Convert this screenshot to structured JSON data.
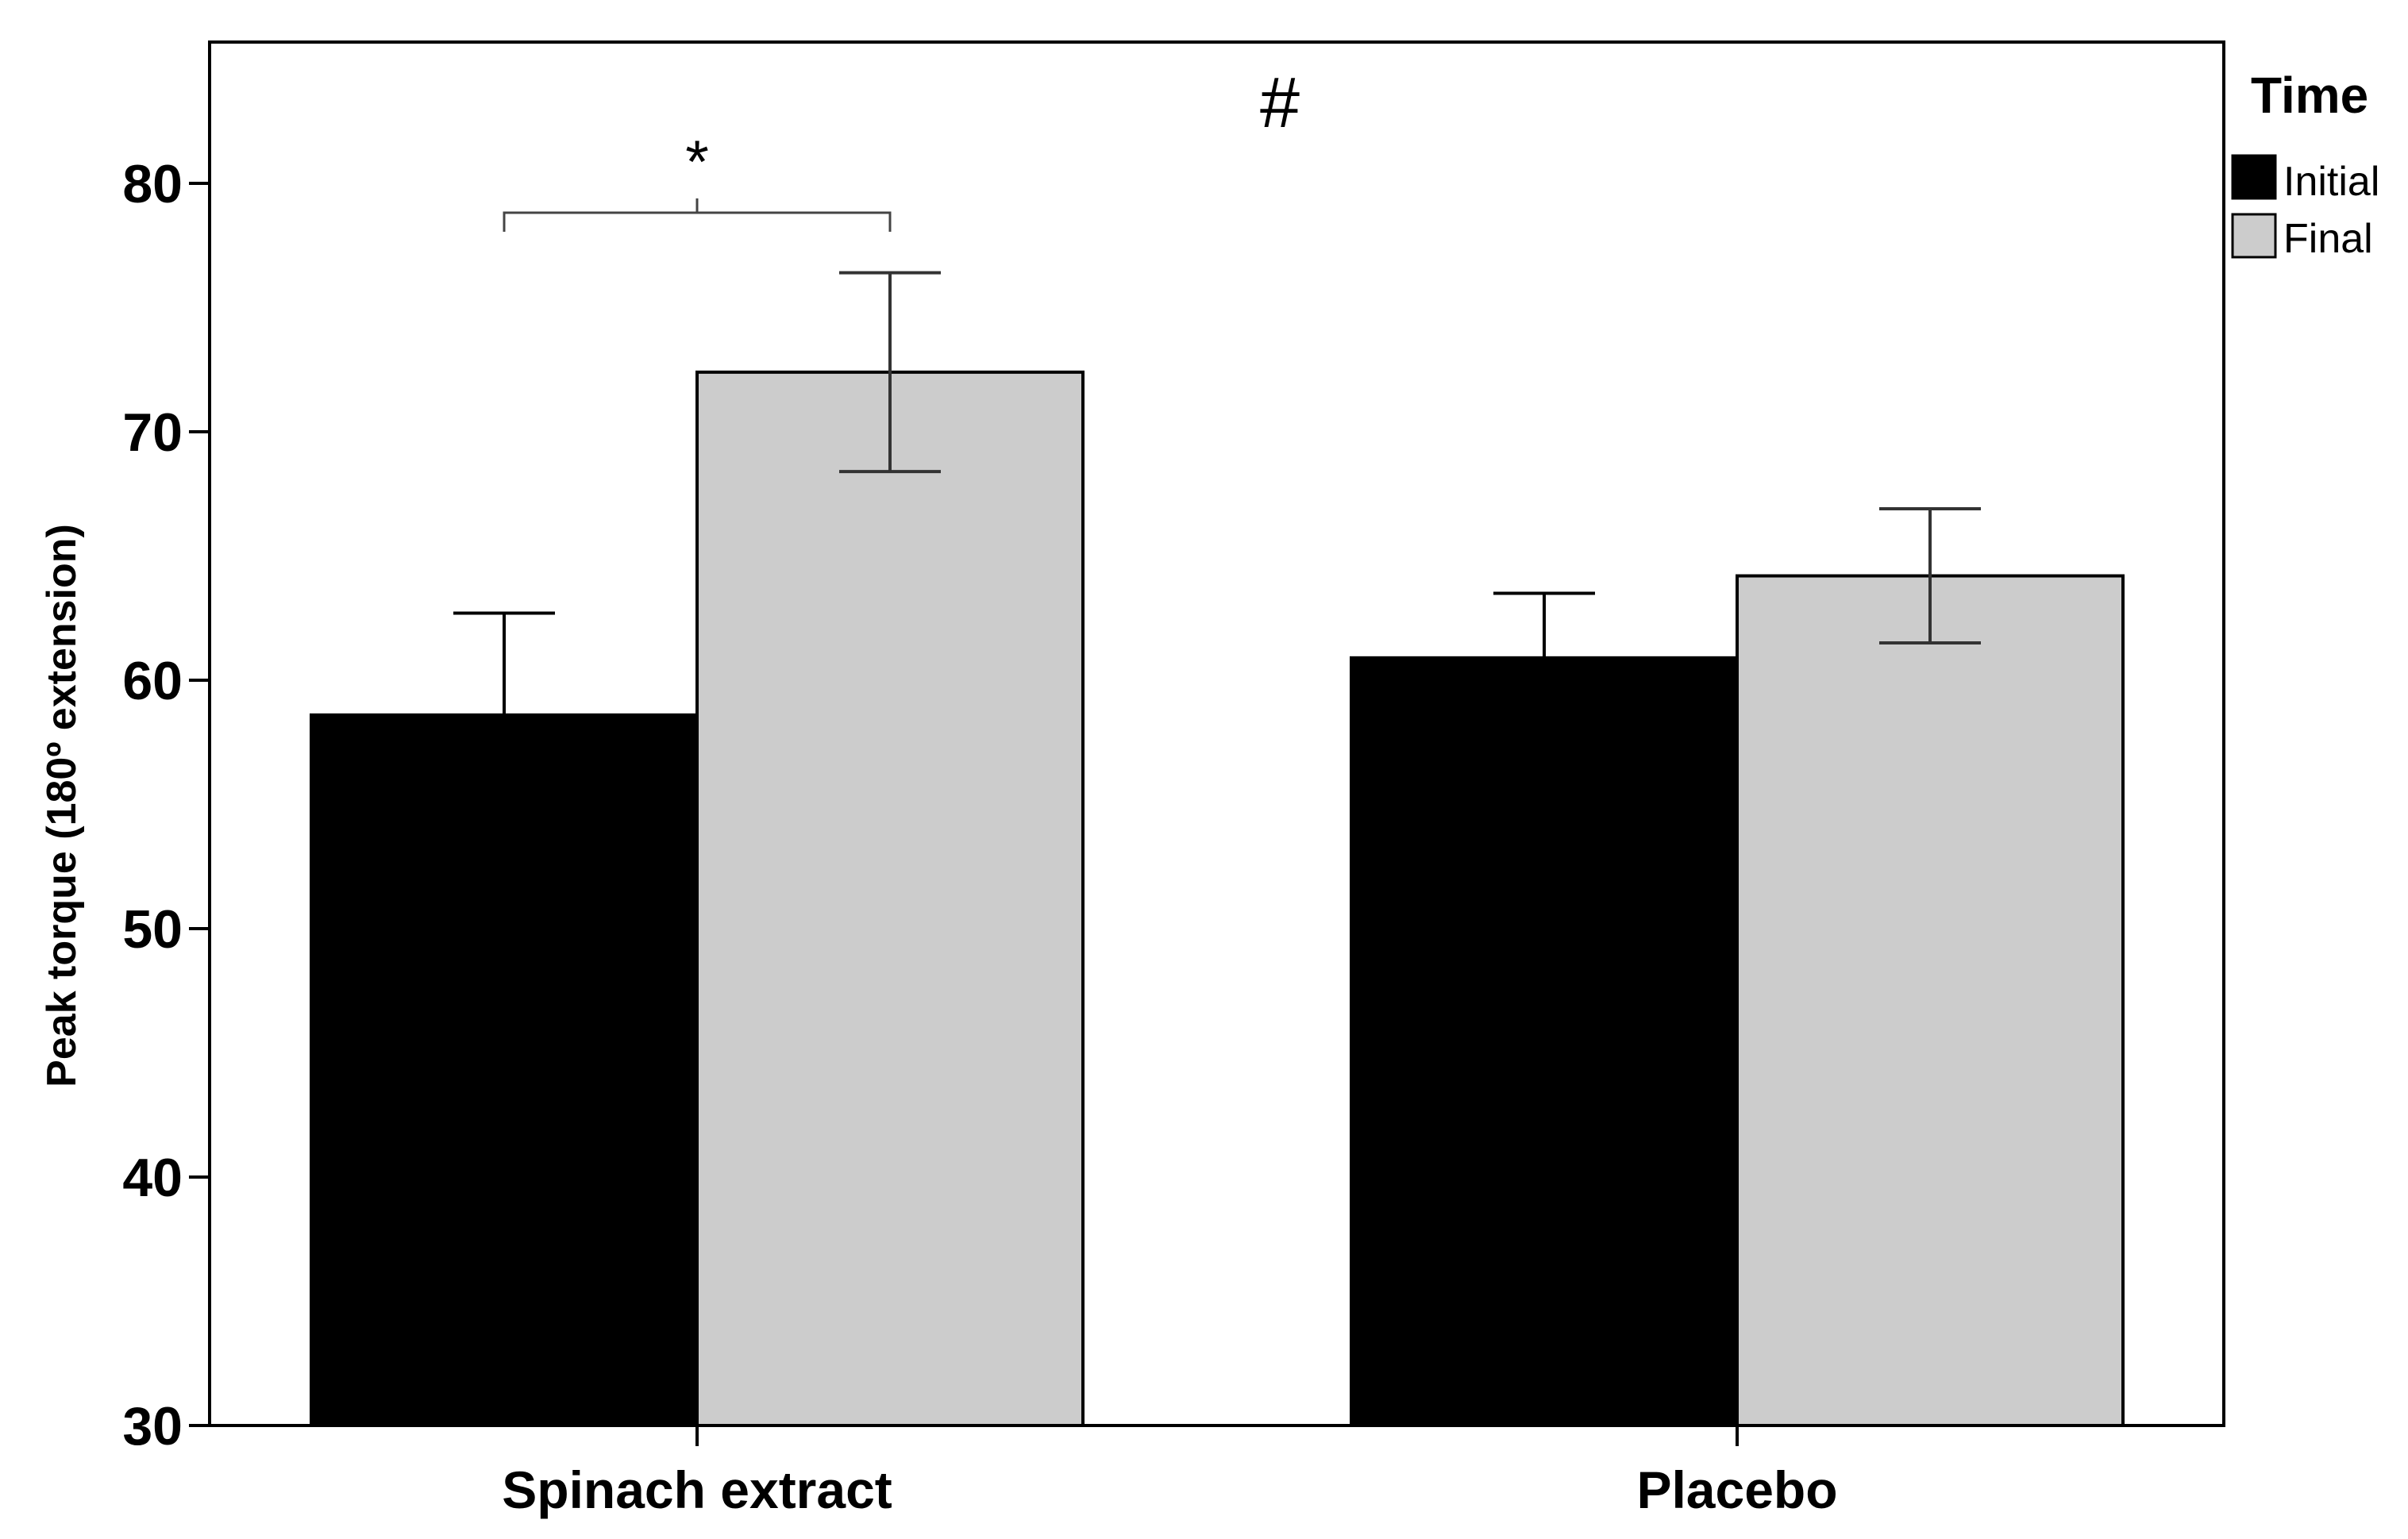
{
  "chart_data": {
    "type": "bar",
    "title": "",
    "xlabel": "",
    "ylabel": "Peak torque (180º extension)",
    "ylim": [
      30,
      85
    ],
    "yticks": [
      30,
      40,
      50,
      60,
      70,
      80
    ],
    "categories": [
      "Spinach extract",
      "Placebo"
    ],
    "legend": {
      "title": "Time",
      "position": "top-right"
    },
    "series": [
      {
        "name": "Initial",
        "color": "#000000",
        "values": [
          58.6,
          60.9
        ],
        "error_plus": [
          4.1,
          2.6
        ]
      },
      {
        "name": "Final",
        "color": "#cccccc",
        "values": [
          72.4,
          64.2
        ],
        "error": [
          4.0,
          2.7
        ]
      }
    ],
    "annotations": {
      "hash": "#",
      "star": "*"
    }
  }
}
